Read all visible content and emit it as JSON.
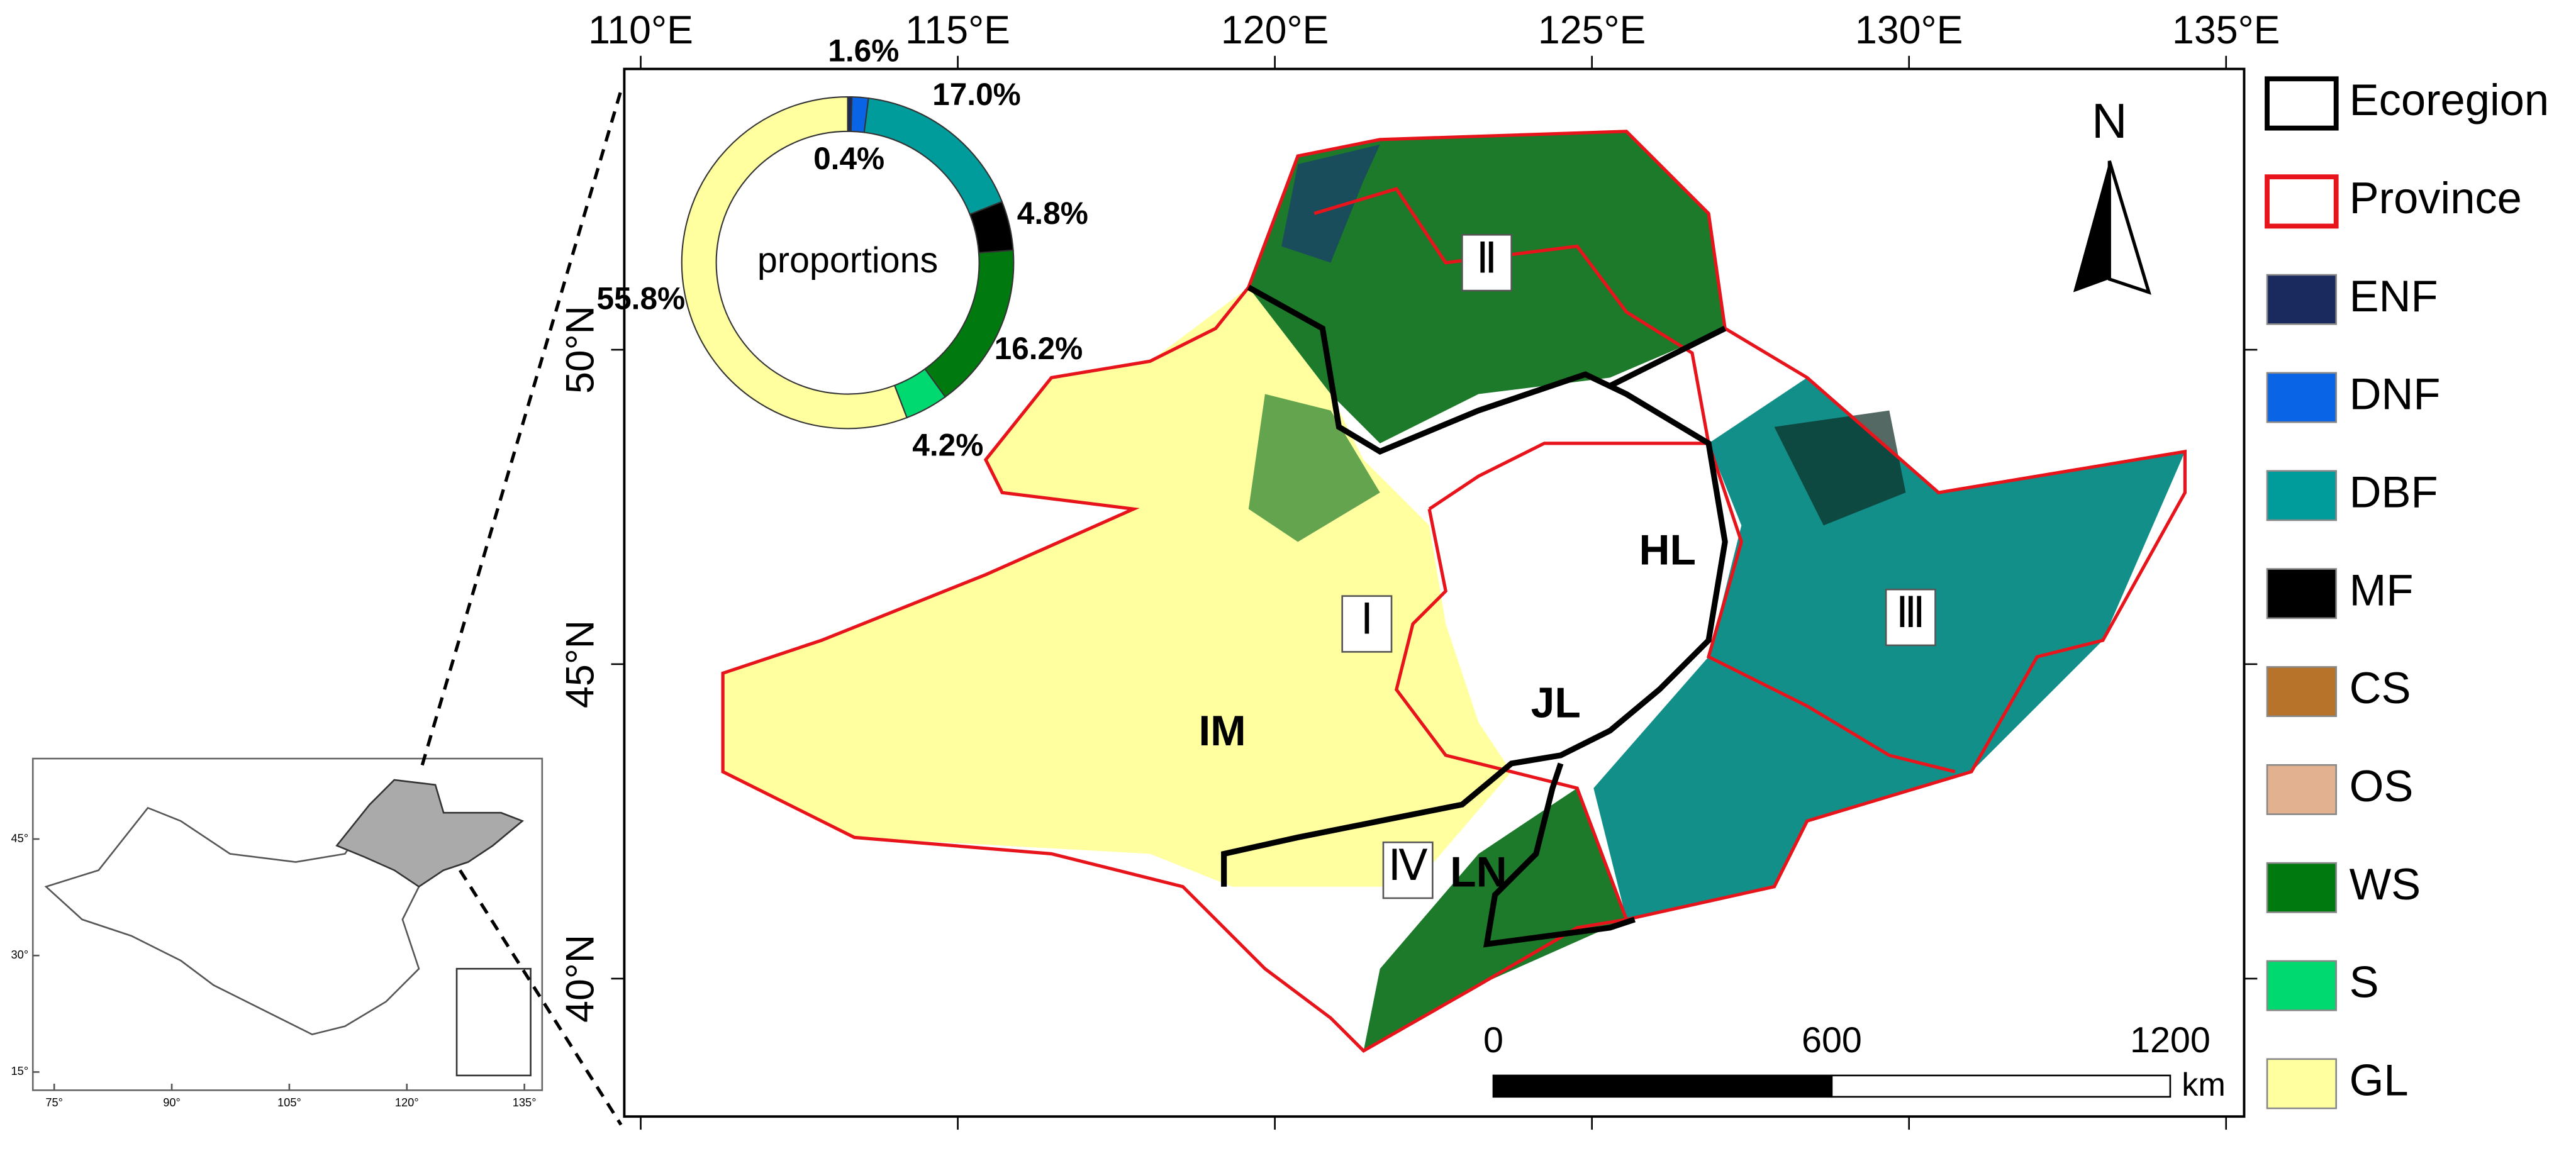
{
  "map": {
    "lon_ticks": [
      {
        "value": 110,
        "label": "110°E"
      },
      {
        "value": 115,
        "label": "115°E"
      },
      {
        "value": 120,
        "label": "120°E"
      },
      {
        "value": 125,
        "label": "125°E"
      },
      {
        "value": 130,
        "label": "130°E"
      },
      {
        "value": 135,
        "label": "135°E"
      }
    ],
    "lat_ticks": [
      {
        "value": 50,
        "label": "50°N"
      },
      {
        "value": 45,
        "label": "45°N"
      },
      {
        "value": 40,
        "label": "40°N"
      }
    ],
    "region_labels": [
      "HL",
      "JL",
      "IM",
      "LN"
    ],
    "ecoregion_labels": [
      "Ⅰ",
      "Ⅱ",
      "Ⅲ",
      "Ⅳ"
    ],
    "north": "N",
    "scale_bar": {
      "ticks": [
        0,
        600,
        1200
      ],
      "unit": "km"
    }
  },
  "legend": [
    {
      "name": "Ecoregion",
      "color": "#000000"
    },
    {
      "name": "Province",
      "color": "#e8141c"
    },
    {
      "name": "ENF",
      "color": "#1a2a5e"
    },
    {
      "name": "DNF",
      "color": "#0a64e6"
    },
    {
      "name": "DBF",
      "color": "#009c9c"
    },
    {
      "name": "MF",
      "color": "#000000"
    },
    {
      "name": "CS",
      "color": "#b8732a"
    },
    {
      "name": "OS",
      "color": "#e2b190"
    },
    {
      "name": "WS",
      "color": "#007a0e"
    },
    {
      "name": "S",
      "color": "#00d870"
    },
    {
      "name": "GL",
      "color": "#ffffa0"
    }
  ],
  "donut": {
    "center_label": "proportions",
    "categories": [
      "ENF",
      "DNF",
      "DBF",
      "MF",
      "WS",
      "S",
      "GL"
    ],
    "values": [
      0.4,
      1.6,
      17.0,
      4.8,
      16.2,
      4.2,
      55.8
    ],
    "value_labels": [
      "0.4%",
      "1.6%",
      "17.0%",
      "4.8%",
      "16.2%",
      "4.2%",
      "55.8%"
    ],
    "colors": [
      "#1a2a5e",
      "#0a64e6",
      "#009c9c",
      "#000000",
      "#007a0e",
      "#00d870",
      "#ffffa0"
    ]
  },
  "inset": {
    "lon_ticks": [
      {
        "value": 75,
        "label": "75°"
      },
      {
        "value": 90,
        "label": "90°"
      },
      {
        "value": 105,
        "label": "105°"
      },
      {
        "value": 120,
        "label": "120°"
      },
      {
        "value": 135,
        "label": "135°"
      }
    ],
    "lat_ticks": [
      {
        "value": 45,
        "label": "45°"
      },
      {
        "value": 30,
        "label": "30°"
      },
      {
        "value": 15,
        "label": "15°"
      }
    ]
  }
}
